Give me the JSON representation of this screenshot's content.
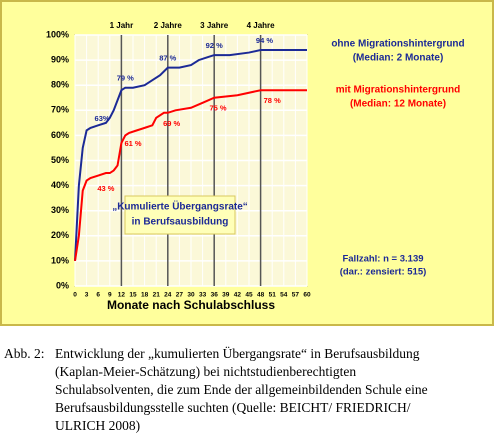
{
  "chart_data": {
    "type": "line",
    "xlabel": "Monate nach Schulabschluss",
    "xlim": [
      0,
      60
    ],
    "ylim": [
      0,
      100
    ],
    "xticks": [
      0,
      3,
      6,
      9,
      12,
      15,
      18,
      21,
      24,
      27,
      30,
      33,
      36,
      39,
      42,
      45,
      48,
      51,
      54,
      57,
      60
    ],
    "yticks": [
      {
        "value": 0,
        "label": "0%"
      },
      {
        "value": 10,
        "label": "10%"
      },
      {
        "value": 20,
        "label": "20%"
      },
      {
        "value": 30,
        "label": "30%"
      },
      {
        "value": 40,
        "label": "40%"
      },
      {
        "value": 50,
        "label": "50%"
      },
      {
        "value": 60,
        "label": "60%"
      },
      {
        "value": 70,
        "label": "70%"
      },
      {
        "value": 80,
        "label": "80%"
      },
      {
        "value": 90,
        "label": "90%"
      },
      {
        "value": 100,
        "label": "100%"
      }
    ],
    "grid": true,
    "year_markers": [
      {
        "x": 12,
        "label": "1 Jahr"
      },
      {
        "x": 24,
        "label": "2 Jahre"
      },
      {
        "x": 36,
        "label": "3 Jahre"
      },
      {
        "x": 48,
        "label": "4 Jahre"
      }
    ],
    "series": [
      {
        "name": "ohne Migrationshintergrund",
        "median_label": "(Median: 2 Monate)",
        "color": "#1c2a96",
        "x": [
          0,
          1,
          2,
          3,
          4,
          6,
          8,
          9,
          10,
          11,
          12,
          13,
          15,
          18,
          20,
          22,
          24,
          27,
          30,
          32,
          34,
          36,
          40,
          45,
          48,
          60
        ],
        "values": [
          10,
          40,
          55,
          62,
          63,
          64,
          65,
          67,
          70,
          74,
          78,
          79,
          79,
          80,
          82,
          84,
          87,
          87,
          88,
          90,
          91,
          92,
          92,
          93,
          94,
          94
        ],
        "point_labels": [
          {
            "x": 7,
            "value": 63,
            "label": "63%"
          },
          {
            "x": 13,
            "value": 79,
            "label": "79 %"
          },
          {
            "x": 24,
            "value": 87,
            "label": "87 %"
          },
          {
            "x": 36,
            "value": 92,
            "label": "92 %"
          },
          {
            "x": 49,
            "value": 94,
            "label": "94 %"
          }
        ]
      },
      {
        "name": "mit Migrationshintergrund",
        "median_label": "(Median: 12 Monate)",
        "color": "#ff0000",
        "x": [
          0,
          1,
          2,
          3,
          4,
          6,
          8,
          9,
          10,
          11,
          12,
          13,
          14,
          16,
          18,
          20,
          21,
          23,
          24,
          26,
          30,
          33,
          36,
          42,
          48,
          60
        ],
        "values": [
          10,
          20,
          38,
          42,
          43,
          44,
          45,
          45,
          46,
          48,
          57,
          60,
          61,
          62,
          63,
          64,
          67,
          69,
          69,
          70,
          71,
          73,
          75,
          76,
          78,
          78
        ],
        "point_labels": [
          {
            "x": 8,
            "value": 43,
            "label": "43 %"
          },
          {
            "x": 15,
            "value": 61,
            "label": "61 %"
          },
          {
            "x": 25,
            "value": 69,
            "label": "69 %"
          },
          {
            "x": 37,
            "value": 75,
            "label": "75 %"
          },
          {
            "x": 51,
            "value": 78,
            "label": "78 %"
          }
        ]
      }
    ],
    "center_box": [
      "„Kumulierte Übergangsrate“",
      "in Berufsausbildung"
    ],
    "sample_note": [
      "Fallzahl: n = 3.139",
      "(dar.: zensiert: 515)"
    ]
  },
  "caption": {
    "label": "Abb. 2:",
    "lines": [
      "Entwicklung der „kumulierten Übergangsrate“ in Berufsausbildung",
      "(Kaplan-Meier-Schätzung) bei nichtstudienberechtigten",
      "Schulabsolventen, die zum Ende der allgemeinbildenden Schule eine",
      "Berufsausbildungsstelle suchten (Quelle: BEICHT/ FRIEDRICH/",
      "ULRICH 2008)"
    ]
  }
}
